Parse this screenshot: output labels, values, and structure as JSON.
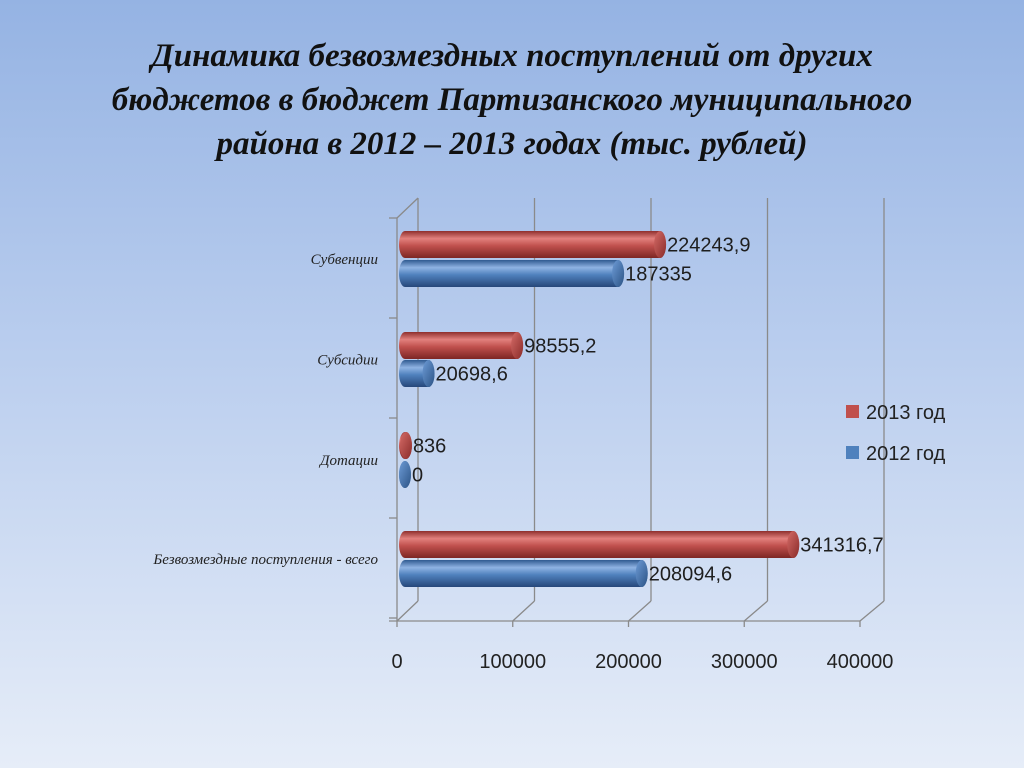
{
  "title_lines": [
    "Динамика безвозмездных поступлений от других",
    "бюджетов в бюджет Партизанского муниципального",
    "района в 2012 – 2013 годах (тыс. рублей)"
  ],
  "chart_data": {
    "type": "bar",
    "orientation": "horizontal",
    "categories": [
      "Субвенции",
      "Субсидии",
      "Дотации",
      "Безвозмездные поступления - всего"
    ],
    "series": [
      {
        "name": "2013 год",
        "color": "#c0504d",
        "values": [
          224243.9,
          98555.2,
          836,
          341316.7
        ],
        "labels": [
          "224243,9",
          "98555,2",
          "836",
          "341316,7"
        ]
      },
      {
        "name": "2012 год",
        "color": "#4f81bd",
        "values": [
          187335,
          20698.6,
          0,
          208094.6
        ],
        "labels": [
          "187335",
          "20698,6",
          "0",
          "208094,6"
        ]
      }
    ],
    "xlim": [
      0,
      400000
    ],
    "ticks": [
      0,
      100000,
      200000,
      300000,
      400000
    ],
    "tick_labels": [
      "0",
      "100000",
      "200000",
      "300000",
      "400000"
    ],
    "grid": true,
    "legend_position": "right"
  }
}
